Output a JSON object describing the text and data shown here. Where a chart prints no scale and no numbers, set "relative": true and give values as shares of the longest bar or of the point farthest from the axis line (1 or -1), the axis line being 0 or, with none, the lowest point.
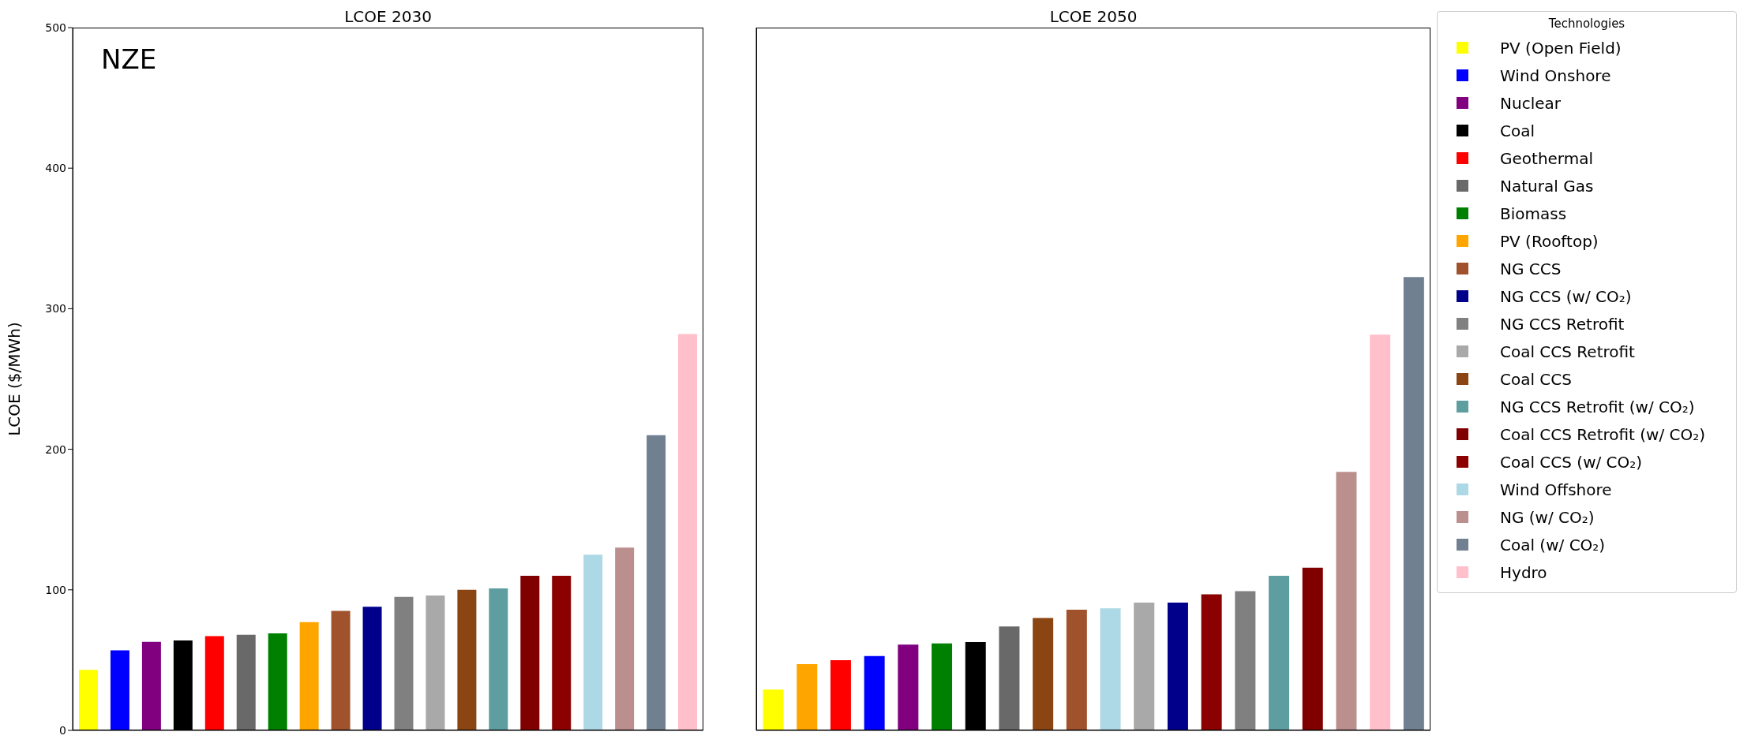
{
  "chart_data": [
    {
      "type": "bar",
      "title": "LCOE 2030",
      "ylabel": "LCOE ($/MWh)",
      "annotations": [
        "NZE"
      ],
      "stacked": true,
      "tick_labels": "y",
      "legend_title": "Technologies",
      "legend": "right",
      "ylim": [
        0,
        500
      ],
      "yticks": [
        0,
        100,
        200,
        300,
        400,
        500
      ],
      "categories": [
        null,
        null,
        null,
        null,
        null,
        null,
        null,
        null,
        null,
        null,
        null,
        null,
        null,
        null,
        null,
        null,
        null,
        null,
        null,
        null
      ],
      "series": [
        {
          "name": "PV (Open Field)",
          "color": "#ffff00",
          "values": [
            43,
            null,
            null,
            null,
            null,
            null,
            null,
            null,
            null,
            null,
            null,
            null,
            null,
            null,
            null,
            null,
            null,
            null,
            null,
            null
          ]
        },
        {
          "name": "Wind Onshore",
          "color": "#0000ff",
          "values": [
            null,
            57,
            null,
            null,
            null,
            null,
            null,
            null,
            null,
            null,
            null,
            null,
            null,
            null,
            null,
            null,
            null,
            null,
            null,
            null
          ]
        },
        {
          "name": "Nuclear",
          "color": "#800080",
          "values": [
            null,
            null,
            63,
            null,
            null,
            null,
            null,
            null,
            null,
            null,
            null,
            null,
            null,
            null,
            null,
            null,
            null,
            null,
            null,
            null
          ]
        },
        {
          "name": "Coal",
          "color": "#000000",
          "values": [
            null,
            null,
            null,
            64,
            null,
            null,
            null,
            null,
            null,
            null,
            null,
            null,
            null,
            null,
            null,
            null,
            null,
            null,
            null,
            null
          ]
        },
        {
          "name": "Geothermal",
          "color": "#ff0000",
          "values": [
            null,
            null,
            null,
            null,
            67,
            null,
            null,
            null,
            null,
            null,
            null,
            null,
            null,
            null,
            null,
            null,
            null,
            null,
            null,
            null
          ]
        },
        {
          "name": "Natural Gas",
          "color": "#696969",
          "values": [
            null,
            null,
            null,
            null,
            null,
            68,
            null,
            null,
            null,
            null,
            null,
            null,
            null,
            null,
            null,
            null,
            null,
            null,
            null,
            null
          ]
        },
        {
          "name": "Biomass",
          "color": "#008000",
          "values": [
            null,
            null,
            null,
            null,
            null,
            null,
            69,
            null,
            null,
            null,
            null,
            null,
            null,
            null,
            null,
            null,
            null,
            null,
            null,
            null
          ]
        },
        {
          "name": "PV (Rooftop)",
          "color": "#ffa500",
          "values": [
            null,
            null,
            null,
            null,
            null,
            null,
            null,
            77,
            null,
            null,
            null,
            null,
            null,
            null,
            null,
            null,
            null,
            null,
            null,
            null
          ]
        },
        {
          "name": "NG CCS",
          "color": "#a0522d",
          "values": [
            null,
            null,
            null,
            null,
            null,
            null,
            null,
            null,
            85,
            null,
            null,
            null,
            null,
            null,
            null,
            null,
            null,
            null,
            null,
            null
          ]
        },
        {
          "name": "NG CCS (w/ CO₂)",
          "color": "#00008b",
          "values": [
            null,
            null,
            null,
            null,
            null,
            null,
            null,
            null,
            null,
            88,
            null,
            null,
            null,
            null,
            null,
            null,
            null,
            null,
            null,
            null
          ]
        },
        {
          "name": "NG CCS Retrofit",
          "color": "#808080",
          "values": [
            null,
            null,
            null,
            null,
            null,
            null,
            null,
            null,
            null,
            null,
            95,
            null,
            null,
            null,
            null,
            null,
            null,
            null,
            null,
            null
          ]
        },
        {
          "name": "Coal CCS Retrofit",
          "color": "#a9a9a9",
          "values": [
            null,
            null,
            null,
            null,
            null,
            null,
            null,
            null,
            null,
            null,
            null,
            96,
            null,
            null,
            null,
            null,
            null,
            null,
            null,
            null
          ]
        },
        {
          "name": "Coal CCS",
          "color": "#8b4513",
          "values": [
            null,
            null,
            null,
            null,
            null,
            null,
            null,
            null,
            null,
            null,
            null,
            null,
            100,
            null,
            null,
            null,
            null,
            null,
            null,
            null
          ]
        },
        {
          "name": "NG CCS Retrofit (w/ CO₂)",
          "color": "#5f9ea0",
          "values": [
            null,
            null,
            null,
            null,
            null,
            null,
            null,
            null,
            null,
            null,
            null,
            null,
            null,
            101,
            null,
            null,
            null,
            null,
            null,
            null
          ]
        },
        {
          "name": "Coal CCS Retrofit (w/ CO₂)",
          "color": "#800000",
          "values": [
            null,
            null,
            null,
            null,
            null,
            null,
            null,
            null,
            null,
            null,
            null,
            null,
            null,
            null,
            110,
            null,
            null,
            null,
            null,
            null
          ]
        },
        {
          "name": "Coal CCS (w/ CO₂)",
          "color": "#8b0000",
          "values": [
            null,
            null,
            null,
            null,
            null,
            null,
            null,
            null,
            null,
            null,
            null,
            null,
            null,
            null,
            null,
            110,
            null,
            null,
            null,
            null
          ]
        },
        {
          "name": "Wind Offshore",
          "color": "#add8e6",
          "values": [
            null,
            null,
            null,
            null,
            null,
            null,
            null,
            null,
            null,
            null,
            null,
            null,
            null,
            null,
            null,
            null,
            125,
            null,
            null,
            null
          ]
        },
        {
          "name": "NG (w/ CO₂)",
          "color": "#bc8f8f",
          "values": [
            null,
            null,
            null,
            null,
            null,
            null,
            null,
            null,
            null,
            null,
            null,
            null,
            null,
            null,
            null,
            null,
            null,
            130,
            null,
            null
          ]
        },
        {
          "name": "Coal (w/ CO₂)",
          "color": "#708090",
          "values": [
            null,
            null,
            null,
            null,
            null,
            null,
            null,
            null,
            null,
            null,
            null,
            null,
            null,
            null,
            null,
            null,
            null,
            null,
            210,
            null
          ]
        },
        {
          "name": "Hydro",
          "color": "#ffc0cb",
          "values": [
            null,
            null,
            null,
            null,
            null,
            null,
            null,
            null,
            null,
            null,
            null,
            null,
            null,
            null,
            null,
            null,
            null,
            null,
            null,
            282
          ]
        }
      ]
    },
    {
      "type": "bar",
      "title": "LCOE 2050",
      "relative": true,
      "categories": [
        null,
        null,
        null,
        null,
        null,
        null,
        null,
        null,
        null,
        null,
        null,
        null,
        null,
        null,
        null,
        null,
        null,
        null,
        null,
        null
      ],
      "values": [
        0.09,
        0.146,
        0.155,
        0.164,
        0.189,
        0.192,
        0.195,
        0.229,
        0.248,
        0.266,
        0.269,
        0.282,
        0.282,
        0.3,
        0.307,
        0.341,
        0.359,
        0.57,
        0.873,
        1
      ],
      "colors": [
        "#ffff00",
        "#ffa500",
        "#ff0000",
        "#0000ff",
        "#800080",
        "#008000",
        "#000000",
        "#696969",
        "#8b4513",
        "#a0522d",
        "#add8e6",
        "#a9a9a9",
        "#00008b",
        "#8b0000",
        "#808080",
        "#5f9ea0",
        "#800000",
        "#bc8f8f",
        "#ffc0cb",
        "#708090"
      ]
    }
  ]
}
